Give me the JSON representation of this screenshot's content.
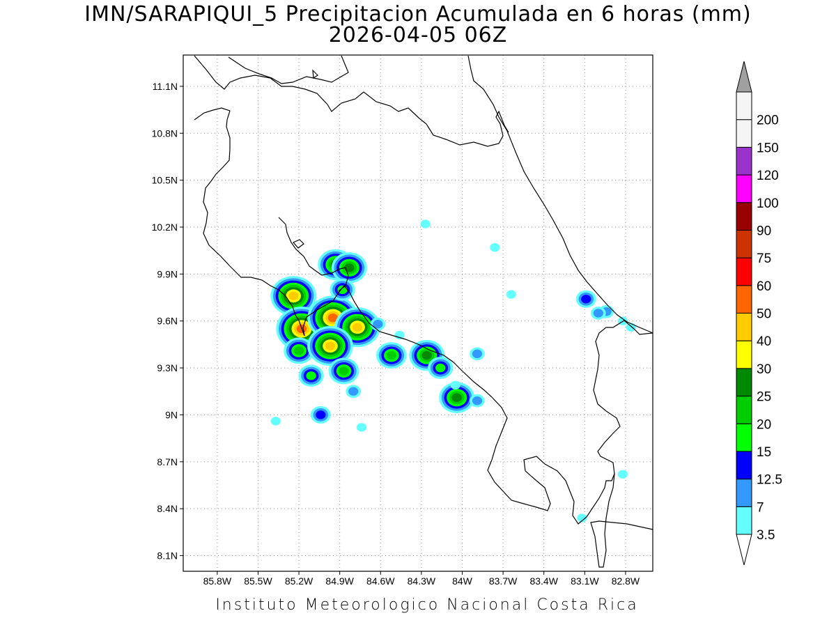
{
  "title": {
    "line1": "IMN/SARAPIQUI_5 Precipitacion Acumulada en 6 horas (mm)",
    "line2": "2026-04-05 06Z"
  },
  "footer": "Instituto Meteorologico Nacional Costa Rica",
  "map": {
    "lon_range": [
      -86.05,
      -82.6
    ],
    "lat_range": [
      8.0,
      11.3
    ],
    "x_ticks": [
      {
        "lon": -85.8,
        "label": "85.8W"
      },
      {
        "lon": -85.5,
        "label": "85.5W"
      },
      {
        "lon": -85.2,
        "label": "85.2W"
      },
      {
        "lon": -84.9,
        "label": "84.9W"
      },
      {
        "lon": -84.6,
        "label": "84.6W"
      },
      {
        "lon": -84.3,
        "label": "84.3W"
      },
      {
        "lon": -84.0,
        "label": "84W"
      },
      {
        "lon": -83.7,
        "label": "83.7W"
      },
      {
        "lon": -83.4,
        "label": "83.4W"
      },
      {
        "lon": -83.1,
        "label": "83.1W"
      },
      {
        "lon": -82.8,
        "label": "82.8W"
      }
    ],
    "y_ticks": [
      {
        "lat": 11.1,
        "label": "11.1N"
      },
      {
        "lat": 10.8,
        "label": "10.8N"
      },
      {
        "lat": 10.5,
        "label": "10.5N"
      },
      {
        "lat": 10.2,
        "label": "10.2N"
      },
      {
        "lat": 9.9,
        "label": "9.9N"
      },
      {
        "lat": 9.6,
        "label": "9.6N"
      },
      {
        "lat": 9.3,
        "label": "9.3N"
      },
      {
        "lat": 9.0,
        "label": "9N"
      },
      {
        "lat": 8.7,
        "label": "8.7N"
      },
      {
        "lat": 8.4,
        "label": "8.4N"
      },
      {
        "lat": 8.1,
        "label": "8.1N"
      }
    ],
    "grid": true,
    "precip_cells": [
      {
        "lon": -85.24,
        "lat": 9.76,
        "max_mm": 40
      },
      {
        "lon": -85.18,
        "lat": 9.55,
        "max_mm": 50
      },
      {
        "lon": -85.2,
        "lat": 9.41,
        "max_mm": 20
      },
      {
        "lon": -84.95,
        "lat": 9.62,
        "max_mm": 50
      },
      {
        "lon": -84.77,
        "lat": 9.56,
        "max_mm": 40
      },
      {
        "lon": -84.93,
        "lat": 9.96,
        "max_mm": 25
      },
      {
        "lon": -84.83,
        "lat": 9.94,
        "max_mm": 25
      },
      {
        "lon": -84.88,
        "lat": 9.8,
        "max_mm": 15
      },
      {
        "lon": -84.97,
        "lat": 9.44,
        "max_mm": 40
      },
      {
        "lon": -84.87,
        "lat": 9.28,
        "max_mm": 20
      },
      {
        "lon": -85.11,
        "lat": 9.25,
        "max_mm": 15
      },
      {
        "lon": -85.04,
        "lat": 9.0,
        "max_mm": 12.5
      },
      {
        "lon": -84.52,
        "lat": 9.38,
        "max_mm": 20
      },
      {
        "lon": -84.26,
        "lat": 9.38,
        "max_mm": 25
      },
      {
        "lon": -84.16,
        "lat": 9.3,
        "max_mm": 15
      },
      {
        "lon": -84.04,
        "lat": 9.11,
        "max_mm": 25
      },
      {
        "lon": -83.89,
        "lat": 9.39,
        "max_mm": 7
      },
      {
        "lon": -83.89,
        "lat": 9.09,
        "max_mm": 7
      },
      {
        "lon": -84.8,
        "lat": 9.15,
        "max_mm": 7
      },
      {
        "lon": -84.62,
        "lat": 9.58,
        "max_mm": 7
      },
      {
        "lon": -83.64,
        "lat": 9.77,
        "max_mm": 3.5
      },
      {
        "lon": -83.09,
        "lat": 9.74,
        "max_mm": 12.5
      },
      {
        "lon": -82.94,
        "lat": 9.66,
        "max_mm": 7
      },
      {
        "lon": -83.0,
        "lat": 9.65,
        "max_mm": 7
      },
      {
        "lon": -82.82,
        "lat": 9.6,
        "max_mm": 3.5
      },
      {
        "lon": -82.76,
        "lat": 9.56,
        "max_mm": 3.5
      },
      {
        "lon": -85.37,
        "lat": 8.96,
        "max_mm": 3.5
      },
      {
        "lon": -84.46,
        "lat": 9.51,
        "max_mm": 3.5
      },
      {
        "lon": -82.82,
        "lat": 8.62,
        "max_mm": 3.5
      },
      {
        "lon": -83.12,
        "lat": 8.34,
        "max_mm": 3.5
      },
      {
        "lon": -84.27,
        "lat": 10.22,
        "max_mm": 3.5
      },
      {
        "lon": -83.76,
        "lat": 10.07,
        "max_mm": 3.5
      },
      {
        "lon": -84.05,
        "lat": 9.19,
        "max_mm": 3.5
      },
      {
        "lon": -84.74,
        "lat": 8.92,
        "max_mm": 3.5
      }
    ]
  },
  "legend": {
    "top_arrow_color": "#a0a0a0",
    "bottom_arrow_color": "#ffffff",
    "bins": [
      {
        "color": "#66ffff",
        "label": "3.5"
      },
      {
        "color": "#3399ff",
        "label": "7"
      },
      {
        "color": "#0000ff",
        "label": "12.5"
      },
      {
        "color": "#00ff00",
        "label": "15"
      },
      {
        "color": "#00cc00",
        "label": "20"
      },
      {
        "color": "#008800",
        "label": "25"
      },
      {
        "color": "#ffff00",
        "label": "30"
      },
      {
        "color": "#ffcc00",
        "label": "40"
      },
      {
        "color": "#ff6600",
        "label": "50"
      },
      {
        "color": "#ff0000",
        "label": "60"
      },
      {
        "color": "#cc3300",
        "label": "75"
      },
      {
        "color": "#990000",
        "label": "90"
      },
      {
        "color": "#ff00ff",
        "label": "100"
      },
      {
        "color": "#9933cc",
        "label": "120"
      },
      {
        "color": "#f5f5f5",
        "label": "150"
      },
      {
        "color": "#f5f5f5",
        "label": "200"
      }
    ]
  }
}
